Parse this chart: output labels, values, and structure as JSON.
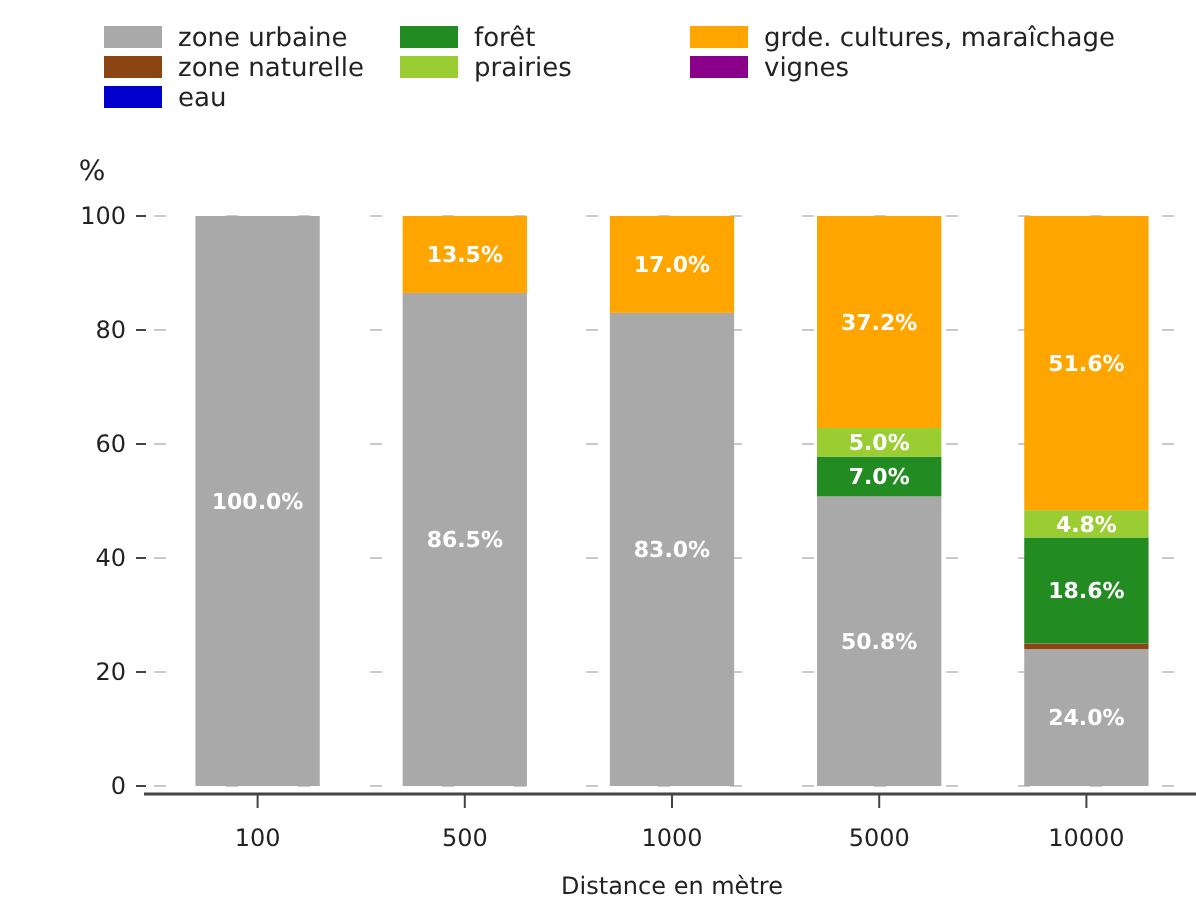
{
  "chart_data": {
    "type": "bar",
    "stacked": true,
    "xlabel": "Distance en mètre",
    "ylabel": "%",
    "categories": [
      "100",
      "500",
      "1000",
      "5000",
      "10000"
    ],
    "ylim": [
      0,
      100
    ],
    "yticks": [
      0,
      20,
      40,
      60,
      80,
      100
    ],
    "grid": "y",
    "legend": "top",
    "series": [
      {
        "name": "zone urbaine",
        "color": "#a9a9a9",
        "values": [
          100,
          86.5,
          83.0,
          50.8,
          24.0
        ],
        "value_labels": [
          "100.0%",
          "86.5%",
          "83.0%",
          "50.8%",
          "24.0%"
        ]
      },
      {
        "name": "zone naturelle",
        "color": "#8b4513",
        "values": [
          0,
          0,
          0,
          0,
          1.0
        ],
        "value_labels": [
          null,
          null,
          null,
          null,
          null
        ]
      },
      {
        "name": "eau",
        "color": "#0000cd",
        "values": [
          0,
          0,
          0,
          0,
          0
        ],
        "value_labels": [
          null,
          null,
          null,
          null,
          null
        ]
      },
      {
        "name": "forêt",
        "color": "#228b22",
        "values": [
          0,
          0,
          0,
          7.0,
          18.6
        ],
        "value_labels": [
          null,
          null,
          null,
          "7.0%",
          "18.6%"
        ]
      },
      {
        "name": "prairies",
        "color": "#9acd32",
        "values": [
          0,
          0,
          0,
          5.0,
          4.8
        ],
        "value_labels": [
          null,
          null,
          null,
          "5.0%",
          "4.8%"
        ]
      },
      {
        "name": "grde. cultures, maraîchage",
        "color": "#ffa500",
        "values": [
          0,
          13.5,
          17.0,
          37.2,
          51.6
        ],
        "value_labels": [
          null,
          "13.5%",
          "17.0%",
          "37.2%",
          "51.6%"
        ]
      },
      {
        "name": "vignes",
        "color": "#8b008b",
        "values": [
          0,
          0,
          0,
          0,
          0
        ],
        "value_labels": [
          null,
          null,
          null,
          null,
          null
        ]
      }
    ]
  }
}
